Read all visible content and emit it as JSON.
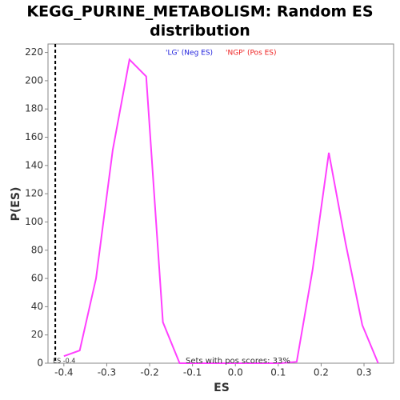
{
  "chart_data": {
    "type": "line",
    "title": "KEGG_PURINE_METABOLISM: Random ES distribution",
    "title_lines": [
      "KEGG_PURINE_METABOLISM: Random ES",
      "distribution"
    ],
    "x_label": "ES",
    "y_label": "P(ES)",
    "x": [
      -0.4,
      -0.363,
      -0.325,
      -0.286,
      -0.247,
      -0.208,
      -0.169,
      -0.13,
      0.106,
      0.143,
      0.18,
      0.218,
      0.257,
      0.296,
      0.333
    ],
    "series": [
      {
        "name": "P(ES)",
        "color": "#ff40ff",
        "values": [
          5,
          9,
          60,
          151,
          215,
          203,
          29,
          0,
          0,
          1,
          66,
          149,
          85,
          27,
          0
        ]
      }
    ],
    "xlim": [
      -0.437,
      0.369
    ],
    "ylim": [
      0,
      226
    ],
    "xticks": [
      -0.4,
      -0.3,
      -0.2,
      -0.1,
      {
        "value": 0,
        "label": "0.0"
      },
      0.1,
      0.2,
      0.3
    ],
    "yticks": [
      0,
      20,
      40,
      60,
      80,
      100,
      120,
      140,
      160,
      180,
      200,
      220
    ],
    "es_line": {
      "value": -0.42,
      "label": "ES -0.4"
    },
    "annotations": [
      {
        "text": "'LG' (Neg ES)",
        "color": "#2222dd"
      },
      {
        "text": "'NGP' (Pos ES)",
        "color": "#ee2222"
      },
      {
        "text": "Sets with pos scores: 33%",
        "color": "#333333"
      }
    ]
  }
}
